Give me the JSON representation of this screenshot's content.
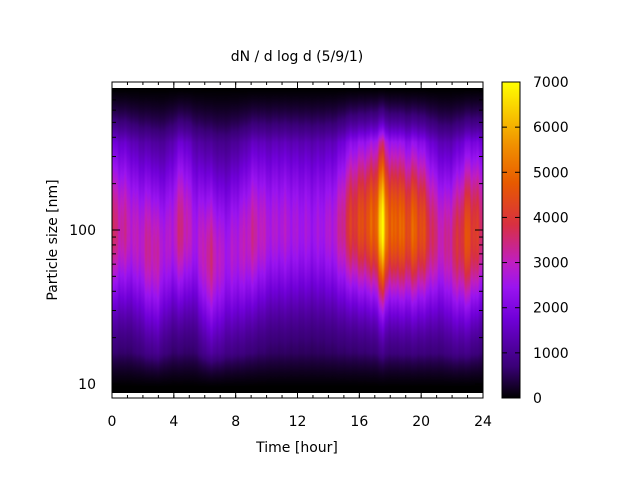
{
  "chart_data": {
    "type": "heatmap",
    "title": "dN / d log d (5/9/1)",
    "xlabel": "Time [hour]",
    "ylabel": "Particle size [nm]",
    "xlim": [
      0,
      24
    ],
    "xticks": [
      "0",
      "4",
      "8",
      "12",
      "16",
      "20",
      "24"
    ],
    "ylim": [
      9,
      850
    ],
    "yscale": "log",
    "yticks": [
      "10",
      "100"
    ],
    "colorbar": {
      "range": [
        0,
        7000
      ],
      "ticks": [
        "0",
        "1000",
        "2000",
        "3000",
        "4000",
        "5000",
        "6000",
        "7000"
      ],
      "colormap": [
        "#000000",
        "#3a0077",
        "#7000d8",
        "#9a14f0",
        "#c01ec0",
        "#d83040",
        "#e85a00",
        "#f09000",
        "#f8c800",
        "#ffff00"
      ]
    },
    "grid": false,
    "time_profile": {
      "hours": [
        0,
        0.5,
        1,
        1.5,
        2,
        2.5,
        3,
        3.5,
        4,
        4.5,
        5,
        5.5,
        6,
        6.5,
        7,
        7.5,
        8,
        8.5,
        9,
        9.5,
        10,
        10.5,
        11,
        11.5,
        12,
        12.5,
        13,
        13.5,
        14,
        14.5,
        15,
        15.5,
        16,
        16.5,
        17,
        17.5,
        18,
        18.5,
        19,
        19.5,
        20,
        20.5,
        21,
        21.5,
        22,
        22.5,
        23,
        23.5,
        24
      ],
      "peak_size_nm": [
        100,
        100,
        100,
        90,
        80,
        75,
        70,
        80,
        95,
        100,
        100,
        85,
        70,
        65,
        65,
        70,
        75,
        80,
        90,
        95,
        95,
        100,
        100,
        100,
        100,
        100,
        100,
        100,
        100,
        100,
        105,
        110,
        110,
        110,
        110,
        105,
        105,
        105,
        100,
        100,
        100,
        95,
        90,
        85,
        80,
        85,
        90,
        95,
        100
      ],
      "peak_value": [
        3200,
        3000,
        2800,
        2600,
        2700,
        3000,
        2700,
        2400,
        2600,
        3200,
        2600,
        2300,
        2900,
        3000,
        2500,
        2300,
        2500,
        2600,
        2900,
        2800,
        2500,
        2400,
        2500,
        2400,
        2300,
        2300,
        2200,
        2300,
        2400,
        2600,
        3200,
        3800,
        4000,
        4300,
        4500,
        6500,
        4200,
        4800,
        4200,
        4500,
        4200,
        3600,
        3000,
        2800,
        3200,
        3600,
        4200,
        3800,
        3200
      ]
    }
  }
}
